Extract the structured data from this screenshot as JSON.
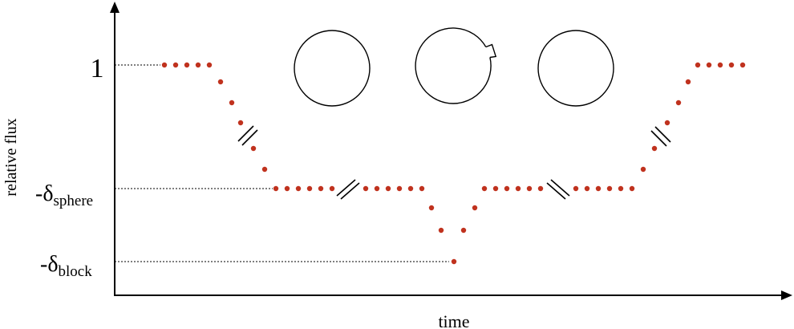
{
  "axes": {
    "x_label": "time",
    "y_label": "relative flux"
  },
  "levels": {
    "top_label": "1",
    "sphere_prefix": "-δ",
    "sphere_subscript": "sphere",
    "block_prefix": "-δ",
    "block_subscript": "block"
  },
  "colors": {
    "points": "#c0321e",
    "lines": "#000000"
  },
  "stages": [
    {
      "shape": "circle"
    },
    {
      "shape": "circle-with-notch"
    },
    {
      "shape": "circle"
    }
  ]
}
